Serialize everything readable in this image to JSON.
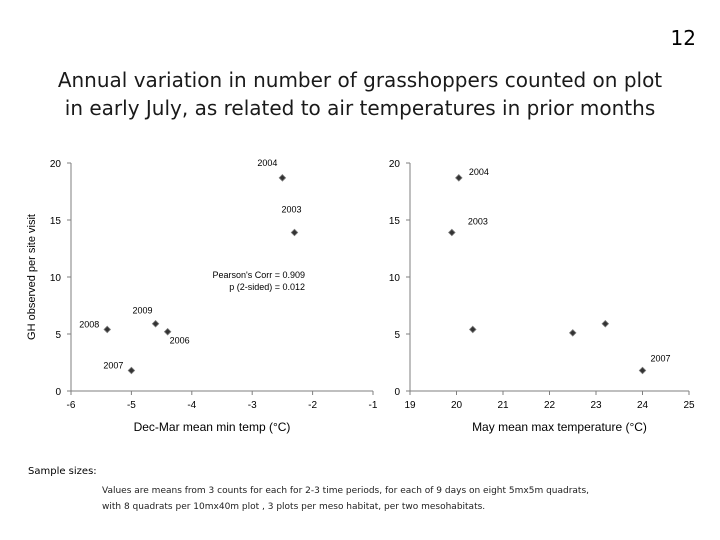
{
  "page_number": "12",
  "title_lines": [
    "Annual variation in number of grasshoppers counted on plot",
    "in early July, as related to air temperatures in prior months"
  ],
  "ylabel": "GH observed per site visit",
  "chart_data": [
    {
      "type": "scatter",
      "xlabel": "Dec-Mar mean min temp (°C)",
      "ylabel": "GH observed per site visit",
      "xlim": [
        -6,
        -1
      ],
      "ylim": [
        0,
        20
      ],
      "xticks": [
        "-6",
        "-5",
        "-4",
        "-3",
        "-2",
        "-1"
      ],
      "yticks": [
        "0",
        "5",
        "10",
        "15",
        "20"
      ],
      "points": [
        {
          "x": -2.5,
          "y": 18.7,
          "label": "2004"
        },
        {
          "x": -2.3,
          "y": 13.9,
          "label": "2003"
        },
        {
          "x": -4.6,
          "y": 5.9,
          "label": "2009"
        },
        {
          "x": -5.4,
          "y": 5.4,
          "label": "2008"
        },
        {
          "x": -4.4,
          "y": 5.2,
          "label": "2006"
        },
        {
          "x": -5.0,
          "y": 1.8,
          "label": "2007"
        }
      ],
      "annotation": [
        "Pearson's Corr = 0.909",
        "p (2-sided) = 0.012"
      ]
    },
    {
      "type": "scatter",
      "xlabel": "May mean max temperature (°C)",
      "ylabel": "",
      "xlim": [
        19,
        25
      ],
      "ylim": [
        0,
        20
      ],
      "xticks": [
        "19",
        "20",
        "21",
        "22",
        "23",
        "24",
        "25"
      ],
      "yticks": [
        "0",
        "5",
        "10",
        "15",
        "20"
      ],
      "points": [
        {
          "x": 20.05,
          "y": 18.7,
          "label": "2004"
        },
        {
          "x": 19.9,
          "y": 13.9,
          "label": "2003"
        },
        {
          "x": 20.35,
          "y": 5.4,
          "label": ""
        },
        {
          "x": 22.5,
          "y": 5.1,
          "label": ""
        },
        {
          "x": 23.2,
          "y": 5.9,
          "label": ""
        },
        {
          "x": 24.0,
          "y": 1.8,
          "label": "2007"
        }
      ]
    }
  ],
  "sample_sizes": {
    "label": "Sample sizes:",
    "lines": [
      "Values are means from 3 counts for each for 2-3 time periods,  for each of 9 days  on eight  5mx5m quadrats,",
      "with 8 quadrats per 10mx40m plot , 3 plots per meso habitat, per two mesohabitats."
    ]
  }
}
